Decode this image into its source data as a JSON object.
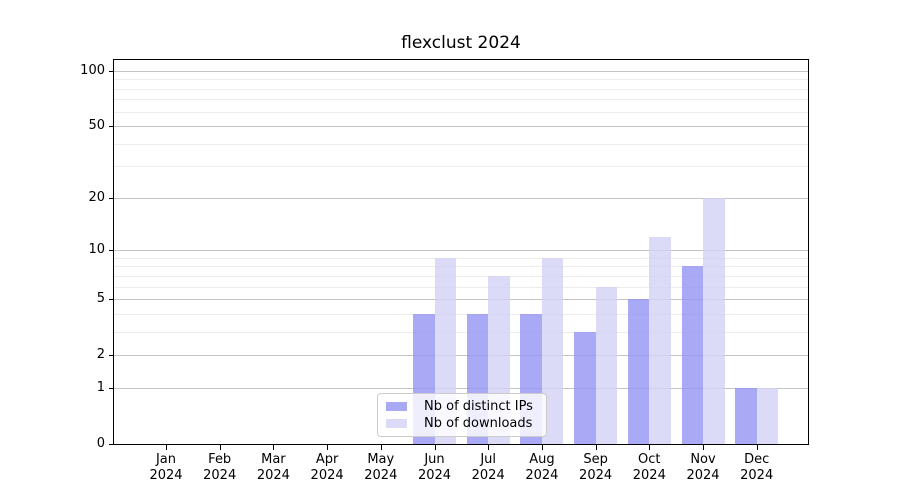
{
  "chart_data": {
    "type": "bar",
    "title": "flexclust 2024",
    "xlabel": "",
    "ylabel": "",
    "yscale": "log1p",
    "ylim": [
      0,
      115.7
    ],
    "yticks": [
      0,
      1,
      2,
      5,
      10,
      20,
      50,
      100
    ],
    "minor_yticks": [
      3,
      4,
      6,
      7,
      8,
      9,
      30,
      40,
      60,
      70,
      80,
      90
    ],
    "grid": true,
    "legend_position": "lower center",
    "categories": [
      {
        "label": "Jan",
        "sub": "2024"
      },
      {
        "label": "Feb",
        "sub": "2024"
      },
      {
        "label": "Mar",
        "sub": "2024"
      },
      {
        "label": "Apr",
        "sub": "2024"
      },
      {
        "label": "May",
        "sub": "2024"
      },
      {
        "label": "Jun",
        "sub": "2024"
      },
      {
        "label": "Jul",
        "sub": "2024"
      },
      {
        "label": "Aug",
        "sub": "2024"
      },
      {
        "label": "Sep",
        "sub": "2024"
      },
      {
        "label": "Oct",
        "sub": "2024"
      },
      {
        "label": "Nov",
        "sub": "2024"
      },
      {
        "label": "Dec",
        "sub": "2024"
      }
    ],
    "series": [
      {
        "name": "Nb of distinct IPs",
        "key": "distinct-ips",
        "color": "rgba(148,148,244,0.8)",
        "values": [
          0,
          0,
          0,
          0,
          0,
          4,
          4,
          4,
          3,
          5,
          8,
          1
        ]
      },
      {
        "name": "Nb of downloads",
        "key": "downloads",
        "color": "rgba(210,210,246,0.8)",
        "values": [
          0,
          0,
          0,
          0,
          0,
          9,
          7,
          9,
          6,
          12,
          20,
          1
        ]
      }
    ]
  }
}
